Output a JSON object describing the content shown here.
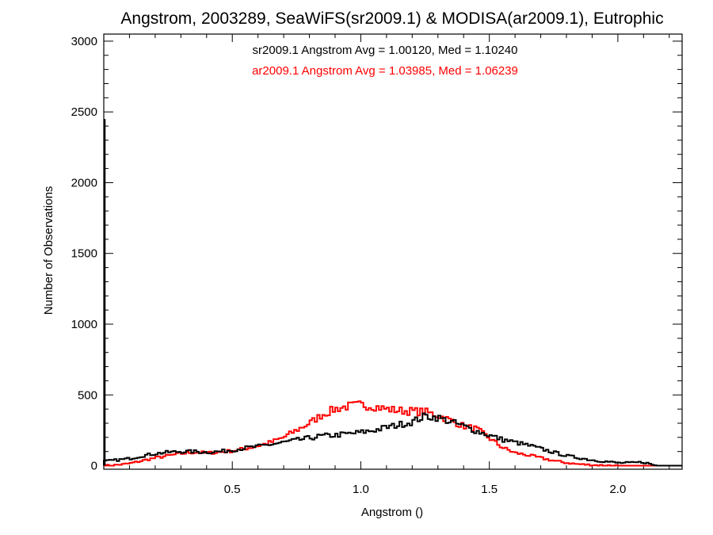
{
  "chart_data": {
    "type": "line",
    "title": "Angstrom, 2003289, SeaWiFS(sr2009.1) & MODISA(ar2009.1), Eutrophic",
    "xlabel": "Angstrom ()",
    "ylabel": "Number of Observations",
    "xlim": [
      0.0,
      2.25
    ],
    "ylim": [
      -25,
      3050
    ],
    "x_ticks": [
      0.5,
      1.0,
      1.5,
      2.0
    ],
    "x_tick_labels": [
      "0.5",
      "1.0",
      "1.5",
      "2.0"
    ],
    "y_ticks": [
      0,
      500,
      1000,
      1500,
      2000,
      2500,
      3000
    ],
    "y_tick_labels": [
      "0",
      "500",
      "1000",
      "1500",
      "2000",
      "2500",
      "3000"
    ],
    "grid": false,
    "step_histogram": true,
    "annotations": [
      {
        "text": "sr2009.1 Angstrom Avg = 1.00120, Med = 1.10240",
        "color": "#000000"
      },
      {
        "text": "ar2009.1 Angstrom Avg = 1.03985, Med = 1.06239",
        "color": "#ff0000"
      }
    ],
    "series": [
      {
        "name": "sr2009.1",
        "color": "#000000",
        "x": [
          0.0,
          0.05,
          0.1,
          0.15,
          0.2,
          0.25,
          0.3,
          0.35,
          0.4,
          0.45,
          0.5,
          0.55,
          0.6,
          0.65,
          0.7,
          0.75,
          0.8,
          0.85,
          0.9,
          0.95,
          1.0,
          1.05,
          1.1,
          1.15,
          1.2,
          1.25,
          1.3,
          1.35,
          1.4,
          1.45,
          1.5,
          1.55,
          1.6,
          1.65,
          1.7,
          1.75,
          1.8,
          1.85,
          1.9,
          1.95,
          2.0,
          2.05,
          2.1,
          2.15
        ],
        "y": [
          30,
          40,
          50,
          70,
          85,
          95,
          100,
          100,
          95,
          100,
          110,
          125,
          135,
          150,
          165,
          180,
          195,
          210,
          215,
          225,
          235,
          250,
          270,
          290,
          310,
          350,
          340,
          310,
          280,
          245,
          215,
          185,
          165,
          145,
          120,
          95,
          70,
          55,
          40,
          30,
          20,
          20,
          25,
          0
        ]
      },
      {
        "name": "ar2009.1",
        "color": "#ff0000",
        "x": [
          0.0,
          0.05,
          0.1,
          0.15,
          0.2,
          0.25,
          0.3,
          0.35,
          0.4,
          0.45,
          0.5,
          0.55,
          0.6,
          0.65,
          0.7,
          0.75,
          0.8,
          0.85,
          0.9,
          0.95,
          1.0,
          1.05,
          1.1,
          1.15,
          1.2,
          1.25,
          1.3,
          1.35,
          1.4,
          1.45,
          1.5,
          1.55,
          1.6,
          1.65,
          1.7,
          1.75,
          1.8,
          1.85,
          1.9,
          1.95,
          2.0,
          2.05,
          2.1,
          2.15
        ],
        "y": [
          0,
          5,
          15,
          35,
          55,
          70,
          85,
          95,
          90,
          95,
          105,
          120,
          140,
          165,
          200,
          250,
          300,
          360,
          400,
          420,
          430,
          420,
          400,
          390,
          385,
          380,
          355,
          320,
          280,
          260,
          195,
          130,
          90,
          75,
          55,
          35,
          20,
          10,
          5,
          2,
          0,
          0,
          0,
          0
        ]
      }
    ],
    "spike": {
      "x": 0.0,
      "y": 2450,
      "color": "#000000"
    }
  }
}
